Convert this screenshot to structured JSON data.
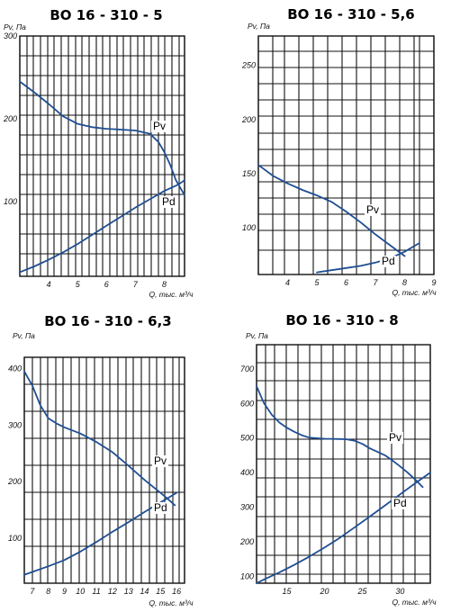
{
  "chart_data": [
    {
      "type": "line",
      "title": "ВО 16 - 310 - 5",
      "ylabel": "Pv, Па",
      "xlabel": "Q, тыс. м³/ч",
      "xlim": [
        3.0,
        8.7
      ],
      "ylim": [
        10,
        300
      ],
      "x_ticks": [
        "4",
        "5",
        "6",
        "7",
        "8"
      ],
      "y_ticks": [
        "100",
        "200",
        "300"
      ],
      "series": [
        {
          "name": "Pv",
          "x": [
            3.0,
            3.5,
            4.0,
            4.5,
            5.0,
            5.5,
            6.0,
            6.5,
            7.0,
            7.5,
            7.8,
            8.0,
            8.2,
            8.4,
            8.7
          ],
          "y": [
            245,
            232,
            218,
            203,
            194,
            190,
            188,
            187,
            186,
            182,
            172,
            160,
            145,
            126,
            108
          ]
        },
        {
          "name": "Pd",
          "x": [
            3.0,
            3.5,
            4.0,
            4.5,
            5.0,
            5.5,
            6.0,
            6.5,
            7.0,
            7.5,
            8.0,
            8.5,
            8.7
          ],
          "y": [
            15,
            22,
            30,
            39,
            49,
            60,
            71,
            82,
            93,
            103,
            113,
            121,
            126
          ]
        }
      ]
    },
    {
      "type": "line",
      "title": "ВО 16 - 310 - 5,6",
      "ylabel": "Pv, Па",
      "xlabel": "Q, тыс. м³/ч",
      "xlim": [
        3.0,
        9.0
      ],
      "ylim": [
        57,
        277
      ],
      "x_ticks": [
        "4",
        "5",
        "6",
        "7",
        "8",
        "9"
      ],
      "y_ticks": [
        "100",
        "150",
        "200",
        "250"
      ],
      "series": [
        {
          "name": "Pv",
          "x": [
            3.0,
            3.5,
            4.0,
            4.5,
            5.0,
            5.5,
            6.0,
            6.5,
            7.0,
            7.5,
            8.0
          ],
          "y": [
            158,
            148,
            141,
            135,
            130,
            124,
            115,
            105,
            94,
            84,
            74
          ]
        },
        {
          "name": "Pd",
          "x": [
            5.0,
            5.5,
            6.0,
            6.5,
            7.0,
            7.5,
            8.0,
            8.5
          ],
          "y": [
            59,
            61,
            63,
            65,
            68,
            72,
            78,
            86
          ]
        }
      ]
    },
    {
      "type": "line",
      "title": "ВО 16 - 310 - 6,3",
      "ylabel": "Pv, Па",
      "xlabel": "Q, тыс. м³/ч",
      "xlim": [
        6.5,
        16.5
      ],
      "ylim": [
        20,
        420
      ],
      "x_ticks": [
        "7",
        "8",
        "9",
        "10",
        "11",
        "12",
        "13",
        "14",
        "15",
        "16"
      ],
      "y_ticks": [
        "100",
        "200",
        "300",
        "400"
      ],
      "series": [
        {
          "name": "Pv",
          "x": [
            6.5,
            7.0,
            7.5,
            8.0,
            8.5,
            9.0,
            10.0,
            11.0,
            12.0,
            13.0,
            14.0,
            15.0,
            15.5,
            15.9
          ],
          "y": [
            395,
            370,
            335,
            312,
            303,
            296,
            285,
            270,
            252,
            228,
            203,
            180,
            168,
            158
          ]
        },
        {
          "name": "Pd",
          "x": [
            6.5,
            7.0,
            8.0,
            9.0,
            10.0,
            11.0,
            12.0,
            13.0,
            14.0,
            15.0,
            16.0
          ],
          "y": [
            35,
            40,
            50,
            61,
            76,
            93,
            111,
            128,
            146,
            163,
            180
          ]
        }
      ]
    },
    {
      "type": "line",
      "title": "ВО 16 - 310 - 8",
      "ylabel": "Pv, Па",
      "xlabel": "Q, тыс. м³/ч",
      "xlim": [
        11,
        34
      ],
      "ylim": [
        80,
        770
      ],
      "x_ticks": [
        "15",
        "20",
        "25",
        "30"
      ],
      "y_ticks": [
        "100",
        "200",
        "300",
        "400",
        "500",
        "600",
        "700"
      ],
      "series": [
        {
          "name": "Pv",
          "x": [
            11.0,
            12.0,
            13.0,
            14.0,
            15.0,
            16.0,
            17.0,
            18.0,
            20.0,
            22.0,
            23.0,
            24.0,
            25.0,
            26.0,
            27.0,
            28.0,
            29.0,
            30.0,
            31.0,
            32.0,
            33.0
          ],
          "y": [
            650,
            600,
            568,
            545,
            530,
            518,
            508,
            501,
            498,
            497,
            496,
            492,
            483,
            470,
            460,
            450,
            435,
            418,
            400,
            380,
            358
          ]
        },
        {
          "name": "Pd",
          "x": [
            11.0,
            12.0,
            14.0,
            16.0,
            18.0,
            20.0,
            22.0,
            24.0,
            26.0,
            28.0,
            30.0,
            32.0,
            34.0
          ],
          "y": [
            80,
            91,
            111,
            133,
            157,
            183,
            211,
            242,
            273,
            305,
            337,
            369,
            400
          ]
        }
      ]
    }
  ]
}
